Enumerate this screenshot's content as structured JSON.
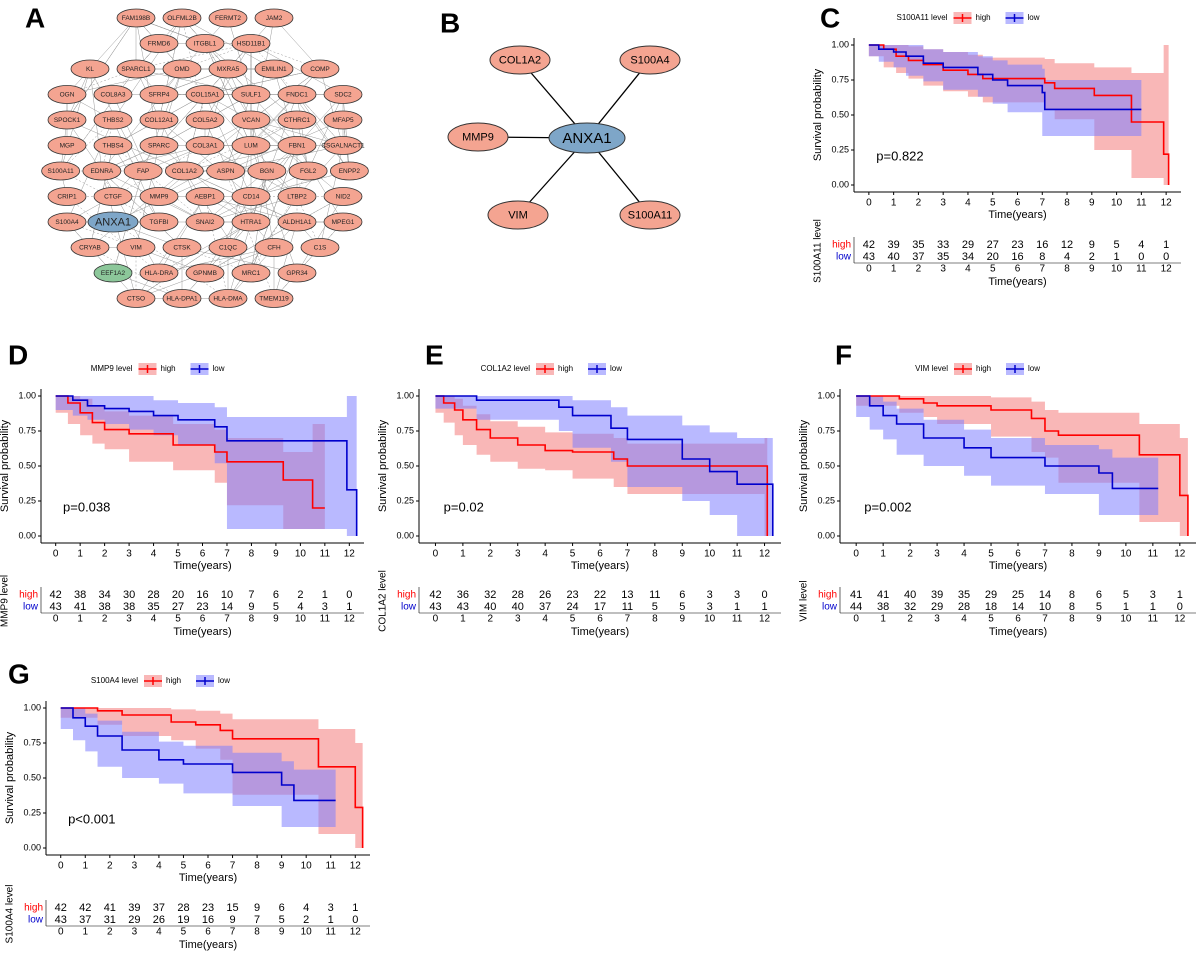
{
  "panel_labels": [
    "A",
    "B",
    "C",
    "D",
    "E",
    "F",
    "G"
  ],
  "network": {
    "node_color": "#f4a491",
    "edge_color": "#9a9a9a",
    "rows": [
      [
        "FAM198B",
        "OLFML2B",
        "FERMT2",
        "JAM2"
      ],
      [
        "FRMD6",
        "ITGBL1",
        "HSD11B1"
      ],
      [
        "KL",
        "SPARCL1",
        "OMD",
        "MXRA5",
        "EMILIN1",
        "COMP"
      ],
      [
        "OGN",
        "COL8A3",
        "SFRP4",
        "COL15A1",
        "SULF1",
        "FNDC1",
        "SDC2"
      ],
      [
        "SPOCK1",
        "THBS2",
        "COL12A1",
        "COL5A2",
        "VCAN",
        "CTHRC1",
        "MFAP5"
      ],
      [
        "MGP",
        "THBS4",
        "SPARC",
        "COL3A1",
        "LUM",
        "FBN1",
        "CSGALNACT1"
      ],
      [
        "S100A11",
        "EDNRA",
        "FAP",
        "COL1A2",
        "ASPN",
        "BGN",
        "FGL2",
        "ENPP2"
      ],
      [
        "CRIP1",
        "CTGF",
        "MMP9",
        "AEBP1",
        "CD14",
        "LTBP2",
        "NID2"
      ],
      [
        "S100A4",
        {
          "label": "ANXA1",
          "color": "#7ea6c8"
        },
        "TGFBI",
        "SNAI2",
        "HTRA1",
        "ALDH1A1",
        "MPEG1"
      ],
      [
        "CRYAB",
        "VIM",
        "CTSK",
        "C1QC",
        "CFH",
        "C1S"
      ],
      [
        {
          "label": "EEF1A2",
          "color": "#8cc79a"
        },
        "HLA-DRA",
        "GPNMB",
        "MRC1",
        "GPR34"
      ],
      [
        "CTSO",
        "HLA-DPA1",
        "HLA-DMA",
        "TMEM119"
      ]
    ]
  },
  "hub_network": {
    "hub": "ANXA1",
    "hub_color": "#7ea6c8",
    "partner_color": "#f4a491",
    "partners": [
      "COL1A2",
      "S100A4",
      "MMP9",
      "S100A11",
      "VIM"
    ]
  },
  "chart_data": [
    {
      "type": "km",
      "legend_title": "S100A11 level",
      "pvalue": "p=0.822",
      "xlabel": "Time(years)",
      "ylabel": "Survival probability",
      "xlim": [
        -0.6,
        12.6
      ],
      "ylim": [
        -0.05,
        1.05
      ],
      "xticks": [
        0,
        1,
        2,
        3,
        4,
        5,
        6,
        7,
        8,
        9,
        10,
        11,
        12
      ],
      "yticks": [
        {
          "value": 0,
          "label": "0.00"
        },
        {
          "value": 0.25,
          "label": "0.25"
        },
        {
          "value": 0.5,
          "label": "0.50"
        },
        {
          "value": 0.75,
          "label": "0.75"
        },
        {
          "value": 1,
          "label": "1.00"
        }
      ],
      "series": [
        {
          "name": "high",
          "color": "#ff0000",
          "band_color": "#f47c7c",
          "x": [
            0,
            0.6,
            1.1,
            1.6,
            2.2,
            3,
            4,
            4.6,
            7.1,
            7.5,
            9.1,
            10.6,
            11.9,
            12.1
          ],
          "values": [
            1,
            0.97,
            0.92,
            0.89,
            0.86,
            0.82,
            0.79,
            0.76,
            0.73,
            0.69,
            0.64,
            0.45,
            0.22,
            0
          ],
          "upper": [
            1,
            1,
            1,
            0.99,
            0.97,
            0.95,
            0.93,
            0.91,
            0.9,
            0.87,
            0.84,
            0.8,
            1,
            1
          ],
          "lower": [
            1,
            0.92,
            0.84,
            0.8,
            0.76,
            0.71,
            0.67,
            0.63,
            0.59,
            0.54,
            0.47,
            0.25,
            0.05,
            0
          ],
          "at_risk": [
            42,
            39,
            35,
            33,
            29,
            27,
            23,
            16,
            12,
            9,
            5,
            4,
            1
          ]
        },
        {
          "name": "low",
          "color": "#0000cc",
          "band_color": "#7f7fff",
          "x": [
            0,
            0.4,
            1,
            1.5,
            2.2,
            3,
            4.4,
            5,
            5.6,
            7,
            7.1,
            11
          ],
          "values": [
            1,
            0.97,
            0.95,
            0.92,
            0.87,
            0.84,
            0.79,
            0.75,
            0.71,
            0.66,
            0.54,
            0.54
          ],
          "upper": [
            1,
            1,
            1,
            1,
            0.97,
            0.95,
            0.92,
            0.89,
            0.86,
            0.83,
            0.75,
            0.75
          ],
          "lower": [
            1,
            0.92,
            0.88,
            0.84,
            0.78,
            0.74,
            0.68,
            0.63,
            0.58,
            0.52,
            0.35,
            0.35
          ],
          "at_risk": [
            43,
            40,
            37,
            35,
            34,
            20,
            16,
            8,
            4,
            2,
            1,
            0,
            0
          ]
        }
      ]
    },
    {
      "type": "km",
      "legend_title": "MMP9 level",
      "pvalue": "p=0.038",
      "xlabel": "Time(years)",
      "ylabel": "Survival probability",
      "xlim": [
        -0.6,
        12.6
      ],
      "ylim": [
        -0.05,
        1.05
      ],
      "xticks": [
        0,
        1,
        2,
        3,
        4,
        5,
        6,
        7,
        8,
        9,
        10,
        11,
        12
      ],
      "yticks": [
        {
          "value": 0,
          "label": "0.00"
        },
        {
          "value": 0.25,
          "label": "0.25"
        },
        {
          "value": 0.5,
          "label": "0.50"
        },
        {
          "value": 0.75,
          "label": "0.75"
        },
        {
          "value": 1,
          "label": "1.00"
        }
      ],
      "series": [
        {
          "name": "high",
          "color": "#ff0000",
          "band_color": "#f47c7c",
          "x": [
            0,
            0.5,
            1,
            1.5,
            2,
            3,
            4.8,
            6.5,
            7,
            9.3,
            10.5,
            11
          ],
          "values": [
            1,
            0.95,
            0.88,
            0.81,
            0.76,
            0.73,
            0.65,
            0.6,
            0.53,
            0.4,
            0.2,
            0.2
          ],
          "upper": [
            1,
            1,
            0.98,
            0.93,
            0.89,
            0.86,
            0.8,
            0.76,
            0.7,
            0.6,
            0.8,
            0.8
          ],
          "lower": [
            1,
            0.88,
            0.8,
            0.72,
            0.66,
            0.62,
            0.53,
            0.47,
            0.38,
            0.22,
            0.05,
            0.05
          ],
          "at_risk": [
            42,
            38,
            34,
            30,
            28,
            20,
            16,
            10,
            7,
            6,
            2,
            1,
            0
          ]
        },
        {
          "name": "low",
          "color": "#0000cc",
          "band_color": "#7f7fff",
          "x": [
            0,
            0.7,
            1.3,
            2,
            3,
            4,
            5,
            6.5,
            7,
            11.9,
            12.3
          ],
          "values": [
            1,
            0.97,
            0.93,
            0.91,
            0.89,
            0.86,
            0.83,
            0.78,
            0.68,
            0.33,
            0
          ],
          "upper": [
            1,
            1,
            1,
            1,
            1,
            0.97,
            0.95,
            0.92,
            0.85,
            1,
            1
          ],
          "lower": [
            1,
            0.9,
            0.86,
            0.83,
            0.8,
            0.76,
            0.72,
            0.65,
            0.52,
            0.05,
            0
          ],
          "at_risk": [
            43,
            41,
            38,
            38,
            35,
            27,
            23,
            14,
            9,
            5,
            4,
            3,
            1
          ]
        }
      ]
    },
    {
      "type": "km",
      "legend_title": "COL1A2 level",
      "pvalue": "p=0.02",
      "xlabel": "Time(years)",
      "ylabel": "Survival probability",
      "xlim": [
        -0.6,
        12.6
      ],
      "ylim": [
        -0.05,
        1.05
      ],
      "xticks": [
        0,
        1,
        2,
        3,
        4,
        5,
        6,
        7,
        8,
        9,
        10,
        11,
        12
      ],
      "yticks": [
        {
          "value": 0,
          "label": "0.00"
        },
        {
          "value": 0.25,
          "label": "0.25"
        },
        {
          "value": 0.5,
          "label": "0.50"
        },
        {
          "value": 0.75,
          "label": "0.75"
        },
        {
          "value": 1,
          "label": "1.00"
        }
      ],
      "series": [
        {
          "name": "high",
          "color": "#ff0000",
          "band_color": "#f47c7c",
          "x": [
            0,
            0.3,
            0.7,
            1,
            1.5,
            2,
            3,
            4,
            5,
            6.5,
            7,
            12,
            12.1
          ],
          "values": [
            1,
            0.95,
            0.9,
            0.83,
            0.76,
            0.7,
            0.65,
            0.61,
            0.6,
            0.55,
            0.5,
            0.5,
            0
          ],
          "upper": [
            1,
            1,
            0.98,
            0.93,
            0.87,
            0.82,
            0.78,
            0.74,
            0.73,
            0.7,
            0.66,
            0.7,
            0.7
          ],
          "lower": [
            1,
            0.88,
            0.81,
            0.72,
            0.65,
            0.58,
            0.53,
            0.48,
            0.47,
            0.41,
            0.35,
            0.3,
            0
          ],
          "at_risk": [
            42,
            36,
            32,
            28,
            26,
            23,
            22,
            13,
            11,
            6,
            3,
            3,
            0
          ]
        },
        {
          "name": "low",
          "color": "#0000cc",
          "band_color": "#7f7fff",
          "x": [
            0,
            1.5,
            4.5,
            5,
            6.4,
            7,
            9,
            10,
            11,
            12.3
          ],
          "values": [
            1,
            0.97,
            0.92,
            0.86,
            0.77,
            0.69,
            0.55,
            0.46,
            0.37,
            0
          ],
          "upper": [
            1,
            1,
            1,
            0.97,
            0.92,
            0.86,
            0.79,
            0.74,
            0.7,
            1
          ],
          "lower": [
            1,
            0.91,
            0.83,
            0.75,
            0.63,
            0.53,
            0.35,
            0.25,
            0.15,
            0
          ],
          "at_risk": [
            43,
            43,
            40,
            40,
            37,
            24,
            17,
            11,
            5,
            5,
            3,
            1,
            1
          ]
        }
      ]
    },
    {
      "type": "km",
      "legend_title": "VIM level",
      "pvalue": "p=0.002",
      "xlabel": "Time(years)",
      "ylabel": "Survival probability",
      "xlim": [
        -0.6,
        12.6
      ],
      "ylim": [
        -0.05,
        1.05
      ],
      "xticks": [
        0,
        1,
        2,
        3,
        4,
        5,
        6,
        7,
        8,
        9,
        10,
        11,
        12
      ],
      "yticks": [
        {
          "value": 0,
          "label": "0.00"
        },
        {
          "value": 0.25,
          "label": "0.25"
        },
        {
          "value": 0.5,
          "label": "0.50"
        },
        {
          "value": 0.75,
          "label": "0.75"
        },
        {
          "value": 1,
          "label": "1.00"
        }
      ],
      "series": [
        {
          "name": "high",
          "color": "#ff0000",
          "band_color": "#f47c7c",
          "x": [
            0,
            1.6,
            2.5,
            3,
            5,
            6.5,
            7,
            7.5,
            10.5,
            12,
            12.3
          ],
          "values": [
            1,
            0.98,
            0.95,
            0.93,
            0.9,
            0.84,
            0.75,
            0.72,
            0.58,
            0.29,
            0
          ],
          "upper": [
            1,
            1,
            1,
            1,
            0.99,
            0.96,
            0.9,
            0.88,
            0.8,
            0.7,
            0.7
          ],
          "lower": [
            1,
            0.93,
            0.88,
            0.85,
            0.8,
            0.71,
            0.6,
            0.56,
            0.38,
            0.1,
            0
          ],
          "at_risk": [
            41,
            41,
            40,
            39,
            35,
            29,
            25,
            14,
            8,
            6,
            5,
            3,
            1
          ]
        },
        {
          "name": "low",
          "color": "#0000cc",
          "band_color": "#7f7fff",
          "x": [
            0,
            0.5,
            1,
            1.5,
            2.5,
            4,
            5,
            7,
            9,
            9.5,
            11.2
          ],
          "values": [
            1,
            0.93,
            0.86,
            0.8,
            0.7,
            0.63,
            0.56,
            0.5,
            0.45,
            0.34,
            0.34
          ],
          "upper": [
            1,
            1,
            0.96,
            0.91,
            0.83,
            0.76,
            0.7,
            0.65,
            0.62,
            0.56,
            0.56
          ],
          "lower": [
            1,
            0.85,
            0.76,
            0.69,
            0.58,
            0.5,
            0.43,
            0.36,
            0.3,
            0.15,
            0.15
          ],
          "at_risk": [
            44,
            38,
            32,
            29,
            28,
            18,
            14,
            10,
            8,
            5,
            1,
            1,
            0
          ]
        }
      ]
    },
    {
      "type": "km",
      "legend_title": "S100A4 level",
      "pvalue": "p<0.001",
      "xlabel": "Time(years)",
      "ylabel": "Survival probability",
      "xlim": [
        -0.6,
        12.6
      ],
      "ylim": [
        -0.05,
        1.05
      ],
      "xticks": [
        0,
        1,
        2,
        3,
        4,
        5,
        6,
        7,
        8,
        9,
        10,
        11,
        12
      ],
      "yticks": [
        {
          "value": 0,
          "label": "0.00"
        },
        {
          "value": 0.25,
          "label": "0.25"
        },
        {
          "value": 0.5,
          "label": "0.50"
        },
        {
          "value": 0.75,
          "label": "0.75"
        },
        {
          "value": 1,
          "label": "1.00"
        }
      ],
      "series": [
        {
          "name": "high",
          "color": "#ff0000",
          "band_color": "#f47c7c",
          "x": [
            0,
            1.5,
            2.5,
            4.5,
            5.5,
            6.5,
            7,
            10.5,
            12,
            12.3
          ],
          "values": [
            1,
            0.98,
            0.95,
            0.9,
            0.88,
            0.84,
            0.78,
            0.58,
            0.29,
            0
          ],
          "upper": [
            1,
            1,
            1,
            0.99,
            0.98,
            0.96,
            0.92,
            0.85,
            0.75,
            0.75
          ],
          "lower": [
            1,
            0.93,
            0.88,
            0.8,
            0.77,
            0.71,
            0.63,
            0.38,
            0.1,
            0
          ],
          "at_risk": [
            42,
            42,
            41,
            39,
            37,
            28,
            23,
            15,
            9,
            6,
            4,
            3,
            1
          ]
        },
        {
          "name": "low",
          "color": "#0000cc",
          "band_color": "#7f7fff",
          "x": [
            0,
            0.5,
            1,
            1.5,
            2.5,
            4,
            5,
            7,
            9,
            9.5,
            11.2
          ],
          "values": [
            1,
            0.93,
            0.87,
            0.8,
            0.7,
            0.63,
            0.6,
            0.54,
            0.45,
            0.34,
            0.34
          ],
          "upper": [
            1,
            1,
            0.96,
            0.91,
            0.83,
            0.76,
            0.73,
            0.68,
            0.62,
            0.56,
            0.56
          ],
          "lower": [
            1,
            0.85,
            0.77,
            0.69,
            0.58,
            0.5,
            0.46,
            0.39,
            0.3,
            0.15,
            0.15
          ],
          "at_risk": [
            43,
            37,
            31,
            29,
            26,
            19,
            16,
            9,
            7,
            5,
            2,
            1,
            0
          ]
        }
      ]
    }
  ]
}
